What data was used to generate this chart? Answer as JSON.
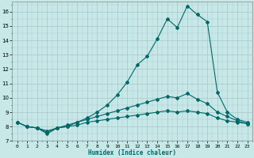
{
  "xlabel": "Humidex (Indice chaleur)",
  "bg_color": "#c8e8e8",
  "grid_color": "#a8cccc",
  "line_color": "#006868",
  "xlim": [
    -0.5,
    23.5
  ],
  "ylim": [
    7,
    16.7
  ],
  "yticks": [
    7,
    8,
    9,
    10,
    11,
    12,
    13,
    14,
    15,
    16
  ],
  "xticks": [
    0,
    1,
    2,
    3,
    4,
    5,
    6,
    7,
    8,
    9,
    10,
    11,
    12,
    13,
    14,
    15,
    16,
    17,
    18,
    19,
    20,
    21,
    22,
    23
  ],
  "line1_x": [
    0,
    1,
    2,
    3,
    4,
    5,
    6,
    7,
    8,
    9,
    10,
    11,
    12,
    13,
    14,
    15,
    16,
    17,
    18,
    19,
    20,
    21,
    22,
    23
  ],
  "line1_y": [
    8.3,
    8.0,
    7.9,
    7.5,
    7.9,
    8.0,
    8.3,
    8.6,
    9.0,
    9.5,
    10.2,
    11.1,
    12.3,
    12.9,
    14.1,
    15.5,
    14.9,
    16.4,
    15.8,
    15.3,
    10.4,
    9.0,
    8.5,
    8.3
  ],
  "line2_x": [
    0,
    1,
    2,
    3,
    4,
    5,
    6,
    7,
    8,
    9,
    10,
    11,
    12,
    13,
    14,
    15,
    16,
    17,
    18,
    19,
    20,
    21,
    22,
    23
  ],
  "line2_y": [
    8.3,
    8.0,
    7.9,
    7.7,
    7.9,
    8.1,
    8.3,
    8.5,
    8.7,
    8.9,
    9.1,
    9.3,
    9.5,
    9.7,
    9.9,
    10.1,
    10.0,
    10.3,
    9.9,
    9.6,
    9.0,
    8.7,
    8.4,
    8.2
  ],
  "line3_x": [
    0,
    1,
    2,
    3,
    4,
    5,
    6,
    7,
    8,
    9,
    10,
    11,
    12,
    13,
    14,
    15,
    16,
    17,
    18,
    19,
    20,
    21,
    22,
    23
  ],
  "line3_y": [
    8.3,
    8.0,
    7.9,
    7.6,
    7.9,
    8.0,
    8.1,
    8.3,
    8.4,
    8.5,
    8.6,
    8.7,
    8.8,
    8.9,
    9.0,
    9.1,
    9.0,
    9.1,
    9.0,
    8.9,
    8.6,
    8.4,
    8.3,
    8.2
  ]
}
